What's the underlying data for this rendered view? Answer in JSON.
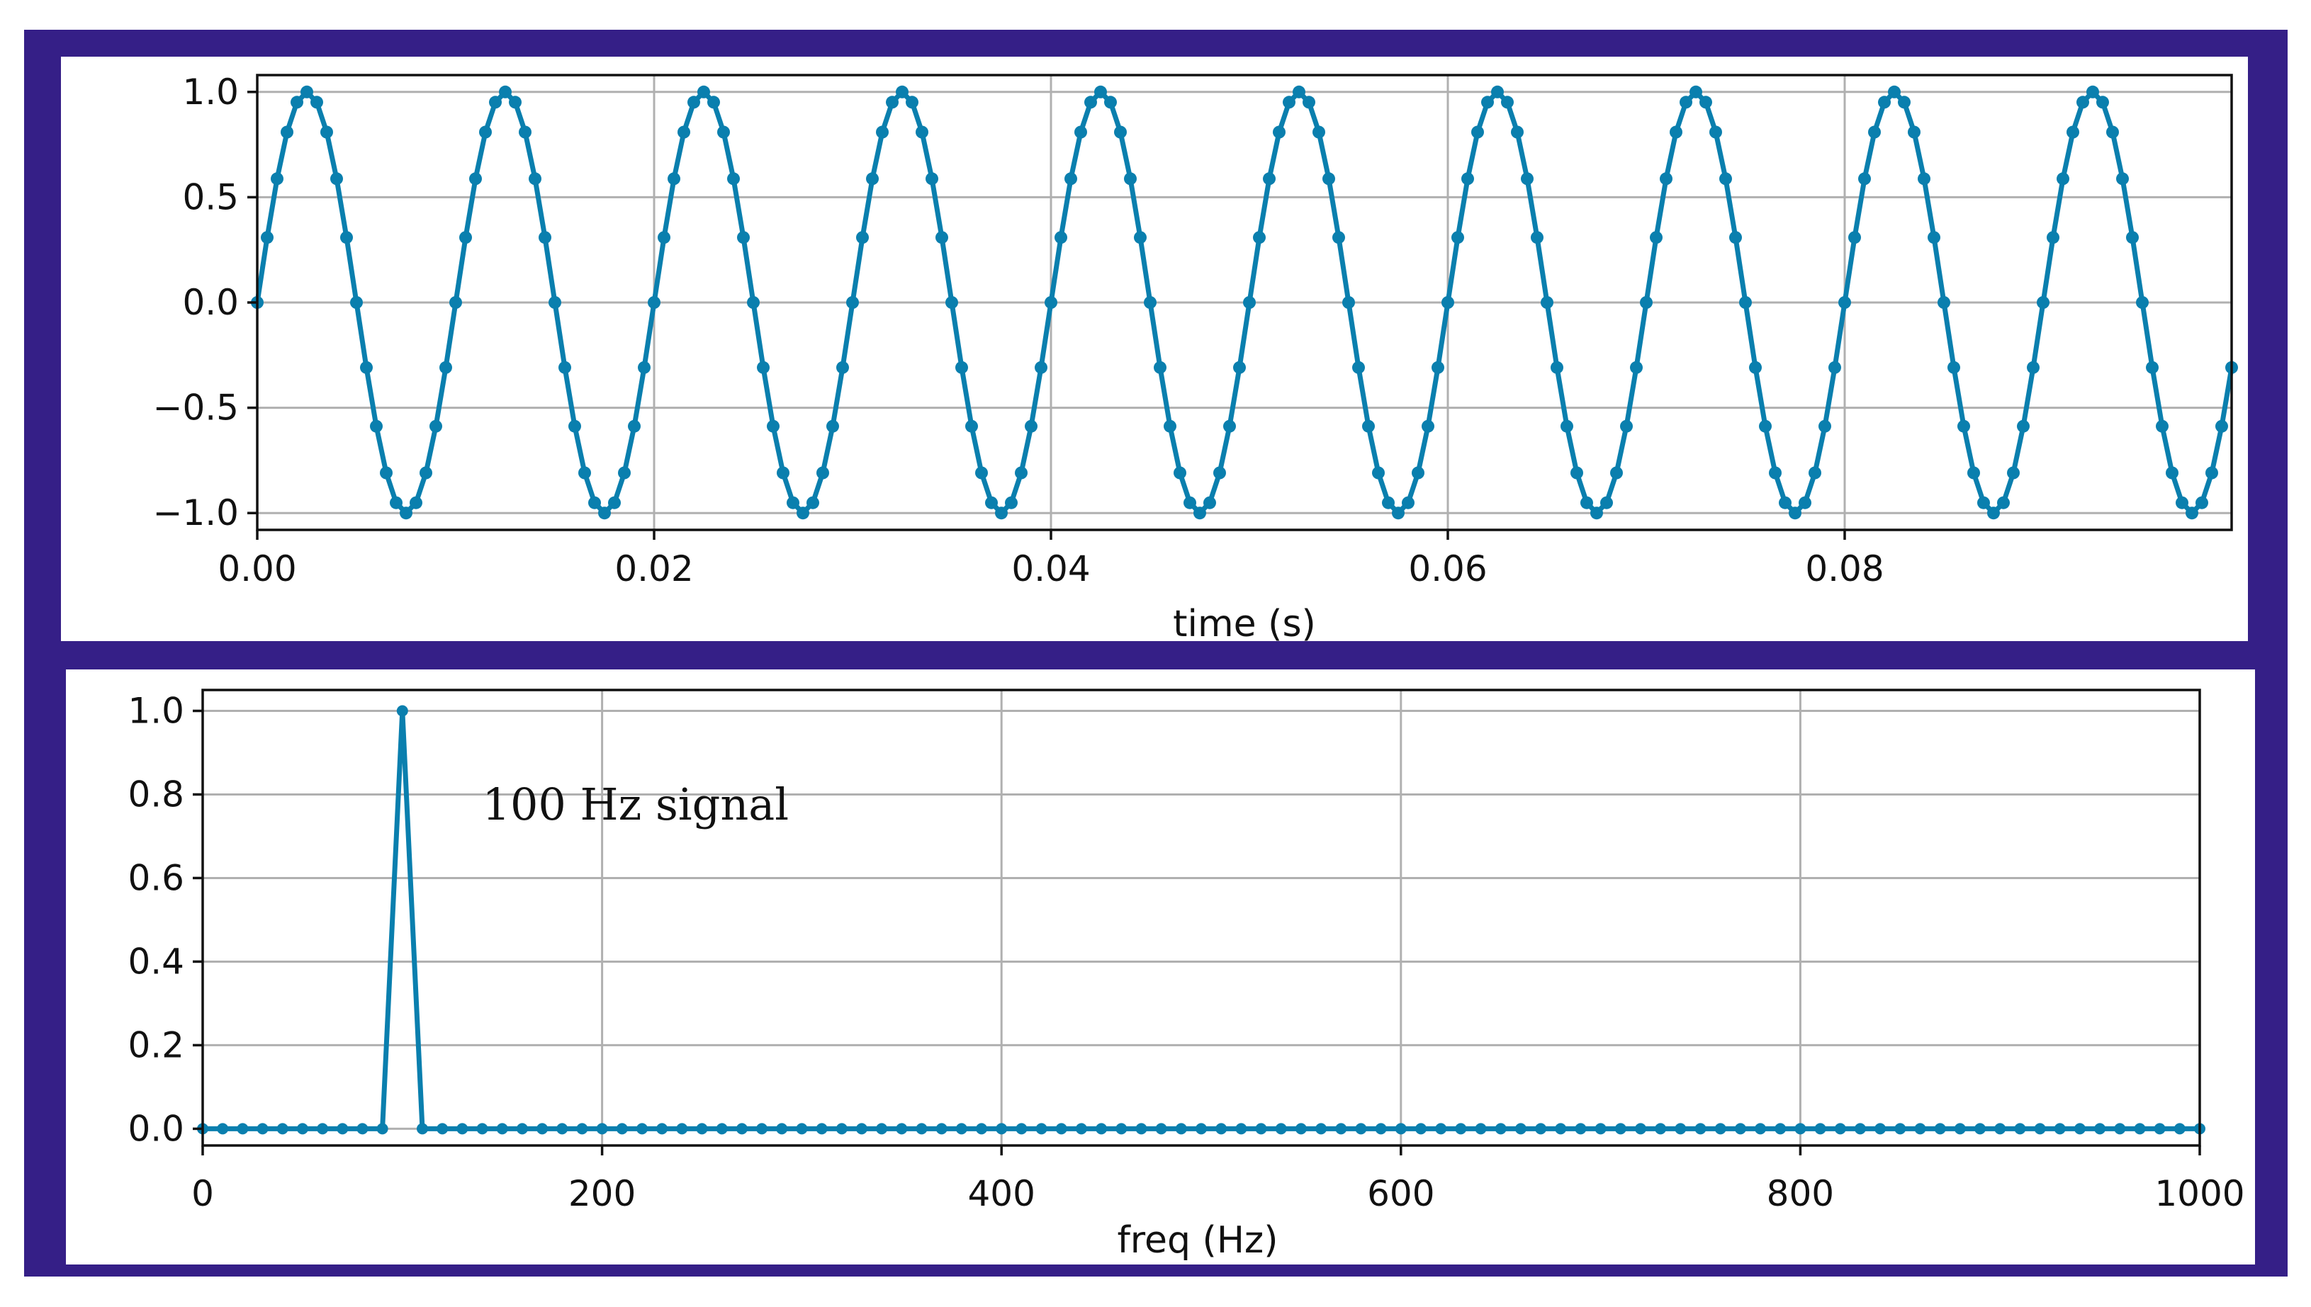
{
  "colors": {
    "frame": "#351f87",
    "line": "#0a7fae",
    "panel": "#ffffff",
    "grid": "#b0b0b0"
  },
  "chart_data": [
    {
      "type": "line",
      "xlabel": "time (s)",
      "ylabel": "",
      "xlim": [
        0,
        0.0995
      ],
      "ylim": [
        -1.08,
        1.08
      ],
      "xticks": [
        0,
        0.02,
        0.04,
        0.06,
        0.08
      ],
      "xtick_labels": [
        "0.00",
        "0.02",
        "0.04",
        "0.06",
        "0.08"
      ],
      "yticks": [
        1.0,
        0.5,
        0.0,
        -0.5,
        -1.0
      ],
      "ytick_labels": [
        "1.0",
        "0.5",
        "0.0",
        "−0.5",
        "−1.0"
      ],
      "grid": true,
      "markers": true,
      "series": [
        {
          "signal": "sin(2π·100·t)",
          "frequency_hz": 100,
          "sample_rate_hz": 2000,
          "t_start": 0,
          "t_end": 0.0995,
          "amplitude": 1.0
        }
      ]
    },
    {
      "type": "line",
      "xlabel": "freq (Hz)",
      "ylabel": "",
      "xlim": [
        0,
        1000
      ],
      "ylim": [
        -0.04,
        1.05
      ],
      "xticks": [
        0,
        200,
        400,
        600,
        800,
        1000
      ],
      "xtick_labels": [
        "0",
        "200",
        "400",
        "600",
        "800",
        "1000"
      ],
      "yticks": [
        1.0,
        0.8,
        0.6,
        0.4,
        0.2,
        0.0
      ],
      "ytick_labels": [
        "1.0",
        "0.8",
        "0.6",
        "0.4",
        "0.2",
        "0.0"
      ],
      "grid": true,
      "markers": true,
      "annotation": {
        "text": "100 Hz signal",
        "x": 140,
        "y": 0.74
      },
      "series": [
        {
          "x_start": 0,
          "x_step": 10,
          "x_end": 1000,
          "peak_x": 100,
          "peak_y": 1.0,
          "baseline_y": 0.0
        }
      ]
    }
  ]
}
